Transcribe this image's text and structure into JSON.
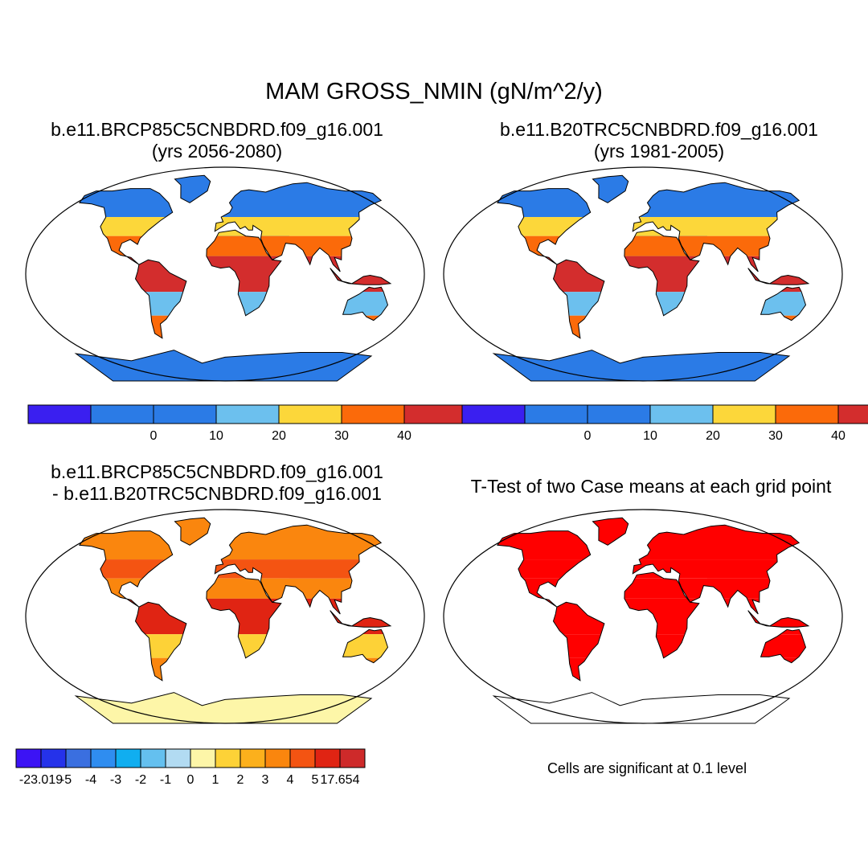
{
  "title": "MAM GROSS_NMIN (gN/m^2/y)",
  "panels": [
    {
      "line1": "b.e11.BRCP85C5CNBDRD.f09_g16.001",
      "line2": "(yrs 2056-2080)",
      "colorbar": {
        "colors": [
          "#3a1ff0",
          "#2b7be6",
          "#2b7be6",
          "#6cc0ee",
          "#fcd73a",
          "#fb6a0a",
          "#d32d2d"
        ],
        "labels": [
          "0",
          "10",
          "20",
          "30",
          "40"
        ]
      },
      "color_by_zone": {
        "ice": "#2b7be6",
        "boreal": "#2b7be6",
        "temperate": "#fcd73a",
        "subtropic": "#fb6a0a",
        "tropic": "#d32d2d",
        "desert": "#2b7be6",
        "dry": "#6cc0ee"
      }
    },
    {
      "line1": "b.e11.B20TRC5CNBDRD.f09_g16.001",
      "line2": "(yrs 1981-2005)",
      "colorbar": {
        "colors": [
          "#3a1ff0",
          "#2b7be6",
          "#2b7be6",
          "#6cc0ee",
          "#fcd73a",
          "#fb6a0a",
          "#d32d2d"
        ],
        "labels": [
          "0",
          "10",
          "20",
          "30",
          "40"
        ]
      },
      "color_by_zone": {
        "ice": "#2b7be6",
        "boreal": "#2b7be6",
        "temperate": "#fcd73a",
        "subtropic": "#fb6a0a",
        "tropic": "#d32d2d",
        "desert": "#2b7be6",
        "dry": "#6cc0ee"
      }
    },
    {
      "line1": "b.e11.BRCP85C5CNBDRD.f09_g16.001",
      "line2": "- b.e11.B20TRC5CNBDRD.f09_g16.001",
      "colorbar": {
        "colors": [
          "#3c13f5",
          "#2532ea",
          "#3a6fe0",
          "#2f8df0",
          "#10aef0",
          "#64c0ef",
          "#b2dbf2",
          "#fdf6a8",
          "#fdd237",
          "#fcb01c",
          "#fa860e",
          "#f45412",
          "#e02413",
          "#ce2a2a"
        ],
        "labels": [
          "-23.019",
          "-5",
          "-4",
          "-3",
          "-2",
          "-1",
          "0",
          "1",
          "2",
          "3",
          "4",
          "5",
          "17.654"
        ]
      },
      "color_by_zone": {
        "ice": "#fdf6a8",
        "boreal": "#fa860e",
        "temperate": "#f45412",
        "subtropic": "#fa860e",
        "tropic": "#e02413",
        "desert": "#fdf6a8",
        "dry": "#fdd237"
      }
    },
    {
      "line1": "T-Test of two Case means at each grid point",
      "note": "Cells are significant at 0.1 level",
      "color_by_zone": {
        "ice": "#ffffff",
        "boreal": "#ff0000",
        "temperate": "#ff0000",
        "subtropic": "#ff0000",
        "tropic": "#ff0000",
        "desert": "#ffffff",
        "dry": "#ff0000"
      }
    }
  ]
}
